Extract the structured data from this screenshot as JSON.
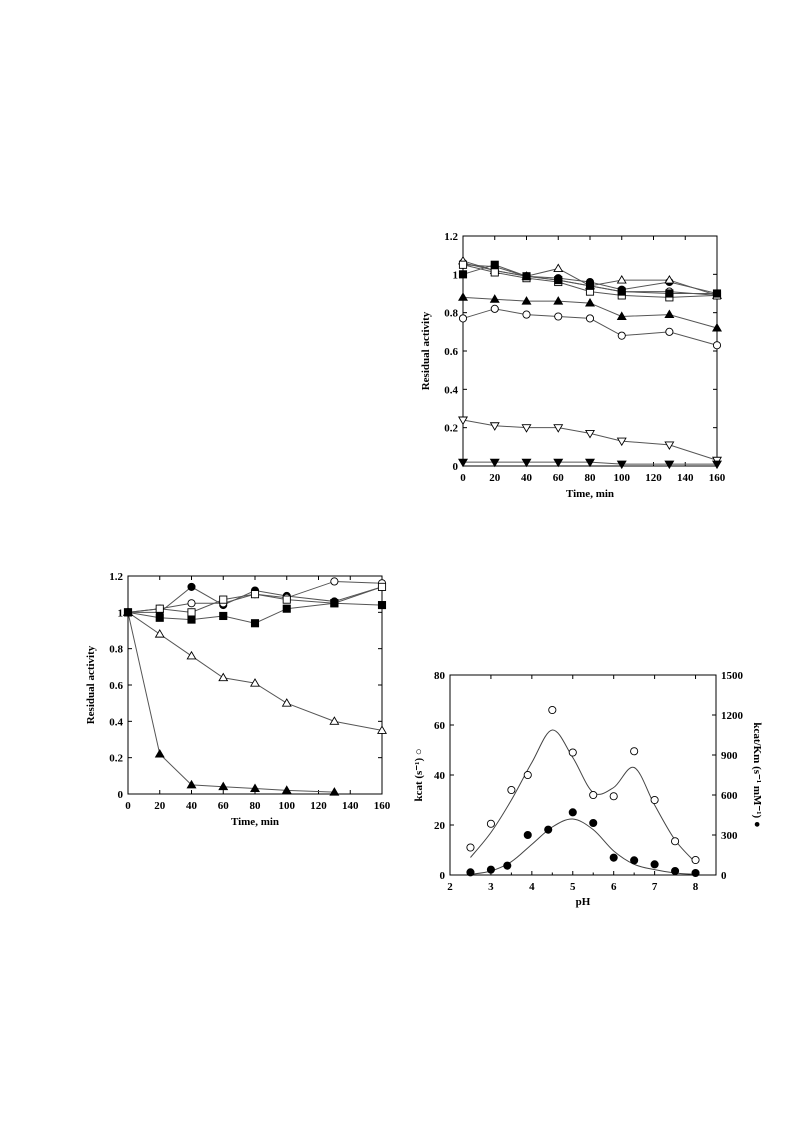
{
  "chart_data": [
    {
      "id": "chart1",
      "type": "line",
      "title": "",
      "xlabel": "Time, min",
      "ylabel": "Residual activity",
      "xlim": [
        0,
        160
      ],
      "ylim": [
        0,
        1.2
      ],
      "xticks": [
        0,
        20,
        40,
        60,
        80,
        100,
        120,
        140,
        160
      ],
      "yticks": [
        0,
        0.2,
        0.4,
        0.6,
        0.8,
        1,
        1.2
      ],
      "grid": false,
      "series": [
        {
          "marker": "filled-circle",
          "x": [
            0,
            20,
            40,
            60,
            80,
            100,
            130,
            160
          ],
          "y": [
            1.05,
            1.04,
            0.99,
            0.98,
            0.96,
            0.92,
            0.96,
            0.9
          ]
        },
        {
          "marker": "open-circle-upper",
          "x": [
            0,
            20,
            40,
            60,
            80,
            100,
            130,
            160
          ],
          "y": [
            1.06,
            1.02,
            0.99,
            0.97,
            0.94,
            0.91,
            0.91,
            0.89
          ]
        },
        {
          "marker": "open-triangle",
          "x": [
            0,
            20,
            40,
            60,
            80,
            100,
            130,
            160
          ],
          "y": [
            1.07,
            1.02,
            0.99,
            1.03,
            0.94,
            0.97,
            0.97,
            0.89
          ]
        },
        {
          "marker": "open-square",
          "x": [
            0,
            20,
            40,
            60,
            80,
            100,
            130,
            160
          ],
          "y": [
            1.05,
            1.01,
            0.98,
            0.96,
            0.91,
            0.89,
            0.88,
            0.89
          ]
        },
        {
          "marker": "filled-square",
          "x": [
            0,
            20,
            40,
            60,
            80,
            100,
            130,
            160
          ],
          "y": [
            1.0,
            1.05,
            0.99,
            0.97,
            0.94,
            0.91,
            0.9,
            0.9
          ]
        },
        {
          "marker": "filled-triangle",
          "x": [
            0,
            20,
            40,
            60,
            80,
            100,
            130,
            160
          ],
          "y": [
            0.88,
            0.87,
            0.86,
            0.86,
            0.85,
            0.78,
            0.79,
            0.72
          ]
        },
        {
          "marker": "open-circle",
          "x": [
            0,
            20,
            40,
            60,
            80,
            100,
            130,
            160
          ],
          "y": [
            0.77,
            0.82,
            0.79,
            0.78,
            0.77,
            0.68,
            0.7,
            0.63
          ]
        },
        {
          "marker": "open-down-triangle",
          "x": [
            0,
            20,
            40,
            60,
            80,
            100,
            130,
            160
          ],
          "y": [
            0.24,
            0.21,
            0.2,
            0.2,
            0.17,
            0.13,
            0.11,
            0.03
          ]
        },
        {
          "marker": "filled-down-triangle",
          "x": [
            0,
            20,
            40,
            60,
            80,
            100,
            130,
            160
          ],
          "y": [
            0.02,
            0.02,
            0.02,
            0.02,
            0.02,
            0.01,
            0.01,
            0.01
          ]
        }
      ]
    },
    {
      "id": "chart2",
      "type": "line",
      "title": "",
      "xlabel": "Time, min",
      "ylabel": "Residual activity",
      "xlim": [
        0,
        160
      ],
      "ylim": [
        0,
        1.2
      ],
      "xticks": [
        0,
        20,
        40,
        60,
        80,
        100,
        120,
        140,
        160
      ],
      "yticks": [
        0,
        0.2,
        0.4,
        0.6,
        0.8,
        1,
        1.2
      ],
      "grid": false,
      "series": [
        {
          "marker": "filled-circle",
          "x": [
            0,
            20,
            40,
            60,
            80,
            100,
            130,
            160
          ],
          "y": [
            1.0,
            1.0,
            1.14,
            1.04,
            1.12,
            1.09,
            1.06,
            1.14
          ]
        },
        {
          "marker": "open-circle",
          "x": [
            0,
            20,
            40,
            60,
            80,
            100,
            130,
            160
          ],
          "y": [
            1.0,
            1.02,
            1.05,
            1.05,
            1.1,
            1.08,
            1.17,
            1.16
          ]
        },
        {
          "marker": "open-square",
          "x": [
            0,
            20,
            40,
            60,
            80,
            100,
            130,
            160
          ],
          "y": [
            1.0,
            1.02,
            1.0,
            1.07,
            1.1,
            1.07,
            1.05,
            1.14
          ]
        },
        {
          "marker": "filled-square",
          "x": [
            0,
            20,
            40,
            60,
            80,
            100,
            130,
            160
          ],
          "y": [
            1.0,
            0.97,
            0.96,
            0.98,
            0.94,
            1.02,
            1.05,
            1.04
          ]
        },
        {
          "marker": "open-triangle",
          "x": [
            0,
            20,
            40,
            60,
            80,
            100,
            130,
            160
          ],
          "y": [
            1.0,
            0.88,
            0.76,
            0.64,
            0.61,
            0.5,
            0.4,
            0.35
          ]
        },
        {
          "marker": "filled-triangle",
          "x": [
            0,
            20,
            40,
            60,
            80,
            100,
            130
          ],
          "y": [
            1.0,
            0.22,
            0.05,
            0.04,
            0.03,
            0.02,
            0.01
          ]
        }
      ]
    },
    {
      "id": "chart3",
      "type": "scatter",
      "title": "",
      "xlabel": "pH",
      "ylabel_left": "kcat (s⁻¹) ○",
      "ylabel_right": "kcat/Km (s⁻¹ mM⁻¹) ●",
      "xlim": [
        2,
        8.5
      ],
      "ylim_left": [
        0,
        80
      ],
      "ylim_right": [
        0,
        1500
      ],
      "xticks": [
        2,
        3,
        4,
        5,
        6,
        7,
        8
      ],
      "yticks_left": [
        0,
        20,
        40,
        60,
        80
      ],
      "yticks_right": [
        0,
        300,
        600,
        900,
        1200,
        1500
      ],
      "grid": false,
      "series": [
        {
          "name": "kcat",
          "marker": "open-circle",
          "axis": "left",
          "x": [
            2.5,
            3.0,
            3.5,
            3.9,
            4.5,
            5.0,
            5.5,
            6.0,
            6.5,
            7.0,
            7.5,
            8.0
          ],
          "y": [
            11,
            20.5,
            34,
            40,
            66,
            49,
            32,
            31.5,
            49.5,
            30,
            13.5,
            6
          ]
        },
        {
          "name": "kcat/Km",
          "marker": "filled-circle",
          "axis": "right",
          "x": [
            2.5,
            3.0,
            3.4,
            3.9,
            4.4,
            5.0,
            5.5,
            6.0,
            6.5,
            7.0,
            7.5,
            8.0
          ],
          "y": [
            20,
            40,
            70,
            300,
            340,
            470,
            390,
            130,
            110,
            80,
            30,
            15
          ]
        }
      ]
    }
  ]
}
